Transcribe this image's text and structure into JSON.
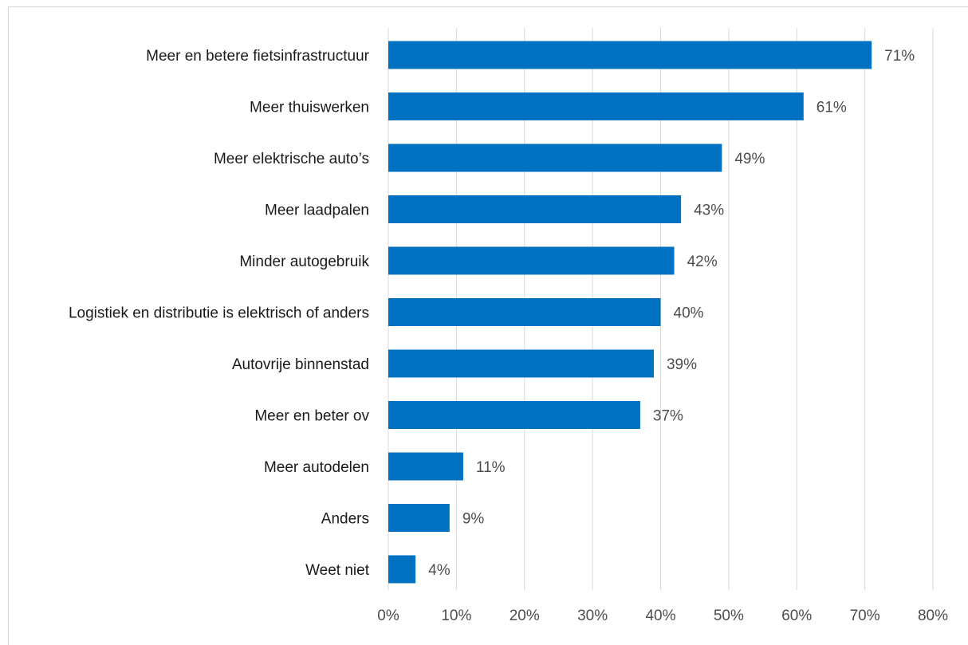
{
  "chart_data": {
    "type": "bar",
    "orientation": "horizontal",
    "title": "",
    "xlabel": "",
    "ylabel": "",
    "categories": [
      "Meer en betere fietsinfrastructuur",
      "Meer thuiswerken",
      "Meer elektrische auto’s",
      "Meer laadpalen",
      "Minder autogebruik",
      "Logistiek en distributie is elektrisch of anders",
      "Autovrije binnenstad",
      "Meer en beter ov",
      "Meer autodelen",
      "Anders",
      "Weet niet"
    ],
    "values": [
      71,
      61,
      49,
      43,
      42,
      40,
      39,
      37,
      11,
      9,
      4
    ],
    "value_labels": [
      "71%",
      "61%",
      "49%",
      "43%",
      "42%",
      "40%",
      "39%",
      "37%",
      "11%",
      "9%",
      "4%"
    ],
    "xlim": [
      0,
      80
    ],
    "x_ticks": [
      0,
      10,
      20,
      30,
      40,
      50,
      60,
      70,
      80
    ],
    "x_tick_labels": [
      "0%",
      "10%",
      "20%",
      "30%",
      "40%",
      "50%",
      "60%",
      "70%",
      "80%"
    ],
    "grid": true,
    "legend": "none",
    "bar_color": "#0070C0",
    "grid_color": "#d9d9d9"
  }
}
